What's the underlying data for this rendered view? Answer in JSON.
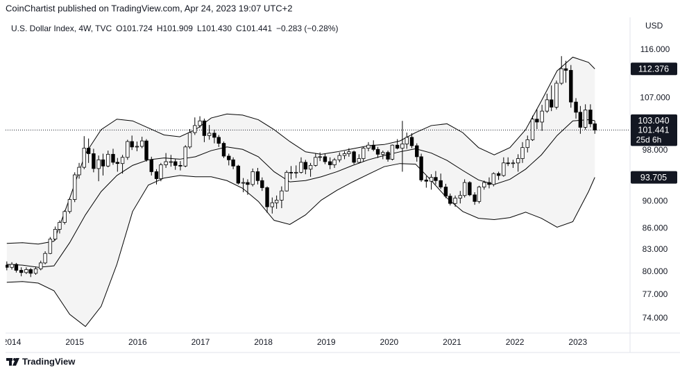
{
  "header": {
    "title": "CoinChartist published on TradingView.com, Apr 24, 2023 19:07 UTC+2"
  },
  "footer": {
    "brand": "TradingView"
  },
  "chart_data": {
    "type": "candlestick",
    "legend": {
      "symbol": "U.S. Dollar Index, 4W, TVC",
      "open": "O101.724",
      "high": "H101.909",
      "low": "L101.430",
      "close": "C101.441",
      "change": "−0.283 (−0.28%)"
    },
    "y_axis_label": "USD",
    "log_scale": true,
    "grid": false,
    "up_color": "#ffffff",
    "down_color": "#000000",
    "outline_color": "#000000",
    "band_fill": "#f4f4f4",
    "band_line_color": "#000000",
    "xlim": [
      2013.9,
      2023.83
    ],
    "ylim": [
      72.2,
      122.5
    ],
    "xticks": [
      2014,
      2015,
      2016,
      2017,
      2018,
      2019,
      2020,
      2021,
      2022,
      2023
    ],
    "yticks": [
      {
        "value": 116,
        "label": "116.000"
      },
      {
        "value": 107,
        "label": "107.000"
      },
      {
        "value": 98,
        "label": "98.000"
      },
      {
        "value": 90,
        "label": "90.000"
      },
      {
        "value": 86,
        "label": "86.000"
      },
      {
        "value": 83,
        "label": "83.000"
      },
      {
        "value": 80,
        "label": "80.000"
      },
      {
        "value": 77,
        "label": "77.000"
      },
      {
        "value": 74,
        "label": "74.000"
      }
    ],
    "price_tags": [
      {
        "value": 112.376,
        "label": "112.376"
      },
      {
        "value": 103.04,
        "label": "103.040"
      },
      {
        "value": 93.705,
        "label": "93.705"
      }
    ],
    "last_price": 101.441,
    "countdown": "25d 6h",
    "x": [
      2013.92,
      2014.0,
      2014.07,
      2014.15,
      2014.23,
      2014.3,
      2014.38,
      2014.46,
      2014.53,
      2014.61,
      2014.69,
      2014.76,
      2014.84,
      2014.92,
      2015.0,
      2015.07,
      2015.15,
      2015.22,
      2015.3,
      2015.38,
      2015.45,
      2015.53,
      2015.61,
      2015.68,
      2015.76,
      2015.84,
      2015.91,
      2015.99,
      2016.07,
      2016.14,
      2016.22,
      2016.3,
      2016.37,
      2016.45,
      2016.53,
      2016.6,
      2016.68,
      2016.76,
      2016.83,
      2016.91,
      2016.99,
      2017.06,
      2017.14,
      2017.22,
      2017.29,
      2017.37,
      2017.45,
      2017.52,
      2017.6,
      2017.68,
      2017.75,
      2017.83,
      2017.91,
      2017.98,
      2018.06,
      2018.14,
      2018.21,
      2018.29,
      2018.37,
      2018.44,
      2018.52,
      2018.6,
      2018.67,
      2018.75,
      2018.83,
      2018.9,
      2018.98,
      2019.06,
      2019.13,
      2019.21,
      2019.29,
      2019.36,
      2019.44,
      2019.52,
      2019.59,
      2019.67,
      2019.75,
      2019.82,
      2019.9,
      2019.98,
      2020.05,
      2020.13,
      2020.21,
      2020.28,
      2020.36,
      2020.44,
      2020.51,
      2020.59,
      2020.67,
      2020.74,
      2020.82,
      2020.9,
      2020.97,
      2021.05,
      2021.13,
      2021.2,
      2021.28,
      2021.36,
      2021.43,
      2021.51,
      2021.59,
      2021.66,
      2021.74,
      2021.82,
      2021.89,
      2021.97,
      2022.05,
      2022.12,
      2022.2,
      2022.28,
      2022.35,
      2022.43,
      2022.51,
      2022.58,
      2022.66,
      2022.74,
      2022.81,
      2022.89,
      2022.97,
      2023.04,
      2023.12,
      2023.2,
      2023.27
    ],
    "candles": [
      [
        80.9,
        81.4,
        80.2,
        80.6
      ],
      [
        80.6,
        81.3,
        80.3,
        81.0
      ],
      [
        81.0,
        81.2,
        79.9,
        80.2
      ],
      [
        80.2,
        80.6,
        79.4,
        79.9
      ],
      [
        79.9,
        80.6,
        79.7,
        80.3
      ],
      [
        80.3,
        80.5,
        79.3,
        79.8
      ],
      [
        79.8,
        80.7,
        79.6,
        80.4
      ],
      [
        80.4,
        81.5,
        80.2,
        81.2
      ],
      [
        81.2,
        82.8,
        81.0,
        82.5
      ],
      [
        82.5,
        84.8,
        82.4,
        84.5
      ],
      [
        84.5,
        86.3,
        84.3,
        85.9
      ],
      [
        85.9,
        87.2,
        85.3,
        86.9
      ],
      [
        86.9,
        88.7,
        86.6,
        88.5
      ],
      [
        88.5,
        90.5,
        88.2,
        90.3
      ],
      [
        90.3,
        94.5,
        89.9,
        94.1
      ],
      [
        94.1,
        96.0,
        93.5,
        95.3
      ],
      [
        95.3,
        100.4,
        95.0,
        98.4
      ],
      [
        98.4,
        100.0,
        96.0,
        97.5
      ],
      [
        97.5,
        98.3,
        94.5,
        95.1
      ],
      [
        95.1,
        97.2,
        93.1,
        96.5
      ],
      [
        96.5,
        97.5,
        94.0,
        95.5
      ],
      [
        95.5,
        98.0,
        95.3,
        97.4
      ],
      [
        97.4,
        98.3,
        95.7,
        96.1
      ],
      [
        96.1,
        96.8,
        94.6,
        95.9
      ],
      [
        95.9,
        97.3,
        94.3,
        96.9
      ],
      [
        96.9,
        99.8,
        96.5,
        99.5
      ],
      [
        99.5,
        100.5,
        98.1,
        98.6
      ],
      [
        98.6,
        99.5,
        97.9,
        98.7
      ],
      [
        98.7,
        100.3,
        98.4,
        99.6
      ],
      [
        99.6,
        99.9,
        96.2,
        96.5
      ],
      [
        96.5,
        97.0,
        94.0,
        94.6
      ],
      [
        94.6,
        95.0,
        92.6,
        93.5
      ],
      [
        93.5,
        96.0,
        93.1,
        95.7
      ],
      [
        95.7,
        97.6,
        95.2,
        96.2
      ],
      [
        96.2,
        97.3,
        95.4,
        96.2
      ],
      [
        96.2,
        96.6,
        94.9,
        95.6
      ],
      [
        95.6,
        96.3,
        94.8,
        95.5
      ],
      [
        95.5,
        98.9,
        95.3,
        98.6
      ],
      [
        98.6,
        101.6,
        98.3,
        101.0
      ],
      [
        101.0,
        103.6,
        100.6,
        102.2
      ],
      [
        102.2,
        103.8,
        101.8,
        103.0
      ],
      [
        103.0,
        103.4,
        99.4,
        100.5
      ],
      [
        100.5,
        102.3,
        99.8,
        100.9
      ],
      [
        100.9,
        101.5,
        99.2,
        100.2
      ],
      [
        100.2,
        100.6,
        98.6,
        99.2
      ],
      [
        99.2,
        99.5,
        96.8,
        97.1
      ],
      [
        97.1,
        97.5,
        95.6,
        96.5
      ],
      [
        96.5,
        96.9,
        95.0,
        95.5
      ],
      [
        95.5,
        95.7,
        92.6,
        92.8
      ],
      [
        92.8,
        93.6,
        91.4,
        92.9
      ],
      [
        92.9,
        93.4,
        91.0,
        92.6
      ],
      [
        92.6,
        95.1,
        92.3,
        94.6
      ],
      [
        94.6,
        95.2,
        92.6,
        93.2
      ],
      [
        93.2,
        93.7,
        91.6,
        92.1
      ],
      [
        92.1,
        92.3,
        88.3,
        89.2
      ],
      [
        89.2,
        90.6,
        88.2,
        89.8
      ],
      [
        89.8,
        90.9,
        88.9,
        90.2
      ],
      [
        90.2,
        92.3,
        89.0,
        91.6
      ],
      [
        91.6,
        94.8,
        91.5,
        94.5
      ],
      [
        94.5,
        95.5,
        93.4,
        94.4
      ],
      [
        94.4,
        95.6,
        93.6,
        94.5
      ],
      [
        94.5,
        96.9,
        94.3,
        96.1
      ],
      [
        96.1,
        96.5,
        94.2,
        95.0
      ],
      [
        95.0,
        96.0,
        93.8,
        95.6
      ],
      [
        95.6,
        97.6,
        95.4,
        96.9
      ],
      [
        96.9,
        97.7,
        96.3,
        97.0
      ],
      [
        97.0,
        97.5,
        95.8,
        96.2
      ],
      [
        96.2,
        96.9,
        95.0,
        95.7
      ],
      [
        95.7,
        96.8,
        95.2,
        96.5
      ],
      [
        96.5,
        97.7,
        96.1,
        97.2
      ],
      [
        97.2,
        97.9,
        96.6,
        97.5
      ],
      [
        97.5,
        98.4,
        97.0,
        97.8
      ],
      [
        97.8,
        98.0,
        95.8,
        96.1
      ],
      [
        96.1,
        97.4,
        95.9,
        96.7
      ],
      [
        96.7,
        98.6,
        96.2,
        98.4
      ],
      [
        98.4,
        99.4,
        97.9,
        98.9
      ],
      [
        98.9,
        99.7,
        97.9,
        98.2
      ],
      [
        98.2,
        98.6,
        96.8,
        97.4
      ],
      [
        97.4,
        98.0,
        96.6,
        97.7
      ],
      [
        97.7,
        98.0,
        96.2,
        96.6
      ],
      [
        96.6,
        99.0,
        96.4,
        98.9
      ],
      [
        98.9,
        99.9,
        98.2,
        98.4
      ],
      [
        98.4,
        103.0,
        94.6,
        99.1
      ],
      [
        99.1,
        101.0,
        98.3,
        100.2
      ],
      [
        100.2,
        100.9,
        98.4,
        98.8
      ],
      [
        98.8,
        99.2,
        96.2,
        97.0
      ],
      [
        97.0,
        97.5,
        93.0,
        93.3
      ],
      [
        93.3,
        93.9,
        92.1,
        93.1
      ],
      [
        93.1,
        94.2,
        91.8,
        93.7
      ],
      [
        93.7,
        94.7,
        92.6,
        93.2
      ],
      [
        93.2,
        94.3,
        91.9,
        92.2
      ],
      [
        92.2,
        92.7,
        90.5,
        90.8
      ],
      [
        90.8,
        91.2,
        89.4,
        89.7
      ],
      [
        89.7,
        90.9,
        89.2,
        90.5
      ],
      [
        90.5,
        91.6,
        89.7,
        90.9
      ],
      [
        90.9,
        93.4,
        90.6,
        92.9
      ],
      [
        92.9,
        93.1,
        90.8,
        91.0
      ],
      [
        91.0,
        91.4,
        89.5,
        90.0
      ],
      [
        90.0,
        92.4,
        89.7,
        92.2
      ],
      [
        92.2,
        93.2,
        91.8,
        92.9
      ],
      [
        92.9,
        93.7,
        92.0,
        92.6
      ],
      [
        92.6,
        94.5,
        92.3,
        94.3
      ],
      [
        94.3,
        94.6,
        93.3,
        94.0
      ],
      [
        94.0,
        96.9,
        93.8,
        96.0
      ],
      [
        96.0,
        96.9,
        95.5,
        95.9
      ],
      [
        95.9,
        96.5,
        95.2,
        96.0
      ],
      [
        96.0,
        97.4,
        94.6,
        96.7
      ],
      [
        96.7,
        99.4,
        96.0,
        98.5
      ],
      [
        98.5,
        100.5,
        97.7,
        99.8
      ],
      [
        99.8,
        103.9,
        99.6,
        103.3
      ],
      [
        103.3,
        105.0,
        101.6,
        102.8
      ],
      [
        102.8,
        105.8,
        101.3,
        104.7
      ],
      [
        104.7,
        107.8,
        104.4,
        106.7
      ],
      [
        106.7,
        109.3,
        104.7,
        105.4
      ],
      [
        105.4,
        110.2,
        105.0,
        109.7
      ],
      [
        109.7,
        114.8,
        109.4,
        112.4
      ],
      [
        112.4,
        113.9,
        109.8,
        112.1
      ],
      [
        112.1,
        113.1,
        105.3,
        106.3
      ],
      [
        106.3,
        107.0,
        103.4,
        104.5
      ],
      [
        104.5,
        105.6,
        100.8,
        101.9
      ],
      [
        101.9,
        105.9,
        101.5,
        104.9
      ],
      [
        104.9,
        105.9,
        101.9,
        102.5
      ],
      [
        102.5,
        103.0,
        100.8,
        101.441
      ]
    ],
    "bands": {
      "x": [
        2013.92,
        2014.17,
        2014.42,
        2014.67,
        2014.92,
        2015.17,
        2015.42,
        2015.67,
        2015.92,
        2016.17,
        2016.42,
        2016.67,
        2016.92,
        2017.17,
        2017.42,
        2017.67,
        2017.92,
        2018.17,
        2018.42,
        2018.67,
        2018.92,
        2019.17,
        2019.42,
        2019.67,
        2019.92,
        2020.17,
        2020.42,
        2020.67,
        2020.92,
        2021.17,
        2021.42,
        2021.67,
        2021.92,
        2022.17,
        2022.42,
        2022.67,
        2022.92,
        2023.17,
        2023.27
      ],
      "upper": [
        83.9,
        84.0,
        83.8,
        84.2,
        90.5,
        97.5,
        101.5,
        103.3,
        103.0,
        101.8,
        100.6,
        100.3,
        101.5,
        103.5,
        104.2,
        104.0,
        103.2,
        101.5,
        99.5,
        97.8,
        97.4,
        97.8,
        98.3,
        98.8,
        99.0,
        99.6,
        101.0,
        102.2,
        102.5,
        101.0,
        98.5,
        97.3,
        98.5,
        101.5,
        106.5,
        112.0,
        114.6,
        113.6,
        112.376
      ],
      "middle": [
        81.0,
        80.9,
        80.6,
        80.8,
        84.0,
        88.0,
        91.5,
        94.0,
        95.6,
        96.5,
        96.8,
        96.6,
        97.0,
        98.0,
        98.6,
        98.2,
        97.0,
        94.6,
        93.0,
        93.2,
        93.8,
        94.6,
        95.6,
        96.5,
        97.2,
        97.8,
        98.3,
        97.6,
        96.4,
        94.8,
        93.3,
        92.6,
        93.4,
        95.0,
        97.3,
        100.5,
        103.0,
        103.2,
        103.04
      ],
      "lower": [
        78.6,
        78.7,
        78.5,
        77.5,
        74.5,
        73.0,
        75.5,
        81.0,
        88.5,
        92.5,
        93.6,
        94.0,
        93.8,
        93.8,
        93.2,
        92.0,
        90.0,
        87.2,
        86.6,
        88.0,
        90.2,
        91.7,
        93.0,
        94.2,
        95.4,
        95.9,
        95.8,
        93.2,
        90.5,
        88.5,
        87.5,
        87.3,
        87.6,
        88.4,
        87.5,
        86.2,
        87.0,
        91.5,
        93.705
      ]
    }
  }
}
